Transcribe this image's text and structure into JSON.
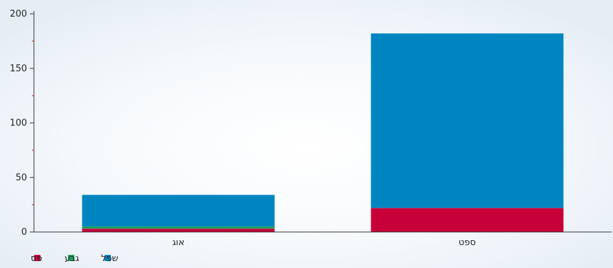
{
  "chart_data": {
    "type": "bar",
    "stacked": true,
    "categories": [
      "אוג",
      "ספט"
    ],
    "series": [
      {
        "name": "פס",
        "color": "#c8003a",
        "values": [
          3,
          22
        ]
      },
      {
        "name": "גבע",
        "color": "#1a9e5a",
        "values": [
          2,
          0
        ]
      },
      {
        "name": "שפל",
        "color": "#0085c0",
        "values": [
          29,
          160
        ]
      }
    ],
    "ylim": [
      0,
      200
    ],
    "yticks": [
      0,
      50,
      100,
      150,
      200
    ],
    "grid": false,
    "legend": "bottom-left",
    "accent_colors": {
      "tick_mark_minor": "#e03030",
      "axis": "#333333"
    }
  }
}
